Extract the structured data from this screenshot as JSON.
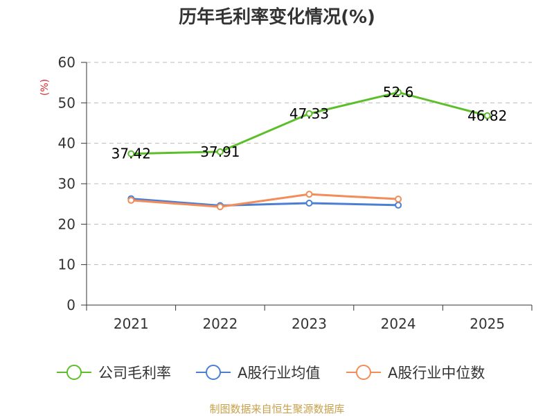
{
  "chart_data": {
    "type": "line",
    "title": "历年毛利率变化情况(%)",
    "ylabel": "(%)",
    "xlabel": "",
    "categories": [
      "2021",
      "2022",
      "2023",
      "2024",
      "2025"
    ],
    "ylim": [
      0,
      60
    ],
    "yticks": [
      0,
      10,
      20,
      30,
      40,
      50,
      60
    ],
    "grid": true,
    "legend_position": "bottom",
    "series": [
      {
        "name": "公司毛利率",
        "color": "#5cbf2a",
        "values": [
          37.42,
          37.91,
          47.33,
          52.6,
          46.82
        ],
        "labels": [
          "37.42",
          "37.91",
          "47.33",
          "52.6",
          "46.82"
        ]
      },
      {
        "name": "A股行业均值",
        "color": "#4a7fd4",
        "values": [
          26.3,
          24.6,
          25.2,
          24.7,
          null
        ]
      },
      {
        "name": "A股行业中位数",
        "color": "#f28c58",
        "values": [
          25.9,
          24.3,
          27.4,
          26.2,
          null
        ]
      }
    ],
    "source": "制图数据来自恒生聚源数据库",
    "colors": {
      "axis": "#333333",
      "grid": "#bbbbbb",
      "ylabel": "#d9272e",
      "source": "#c8a04a"
    }
  }
}
